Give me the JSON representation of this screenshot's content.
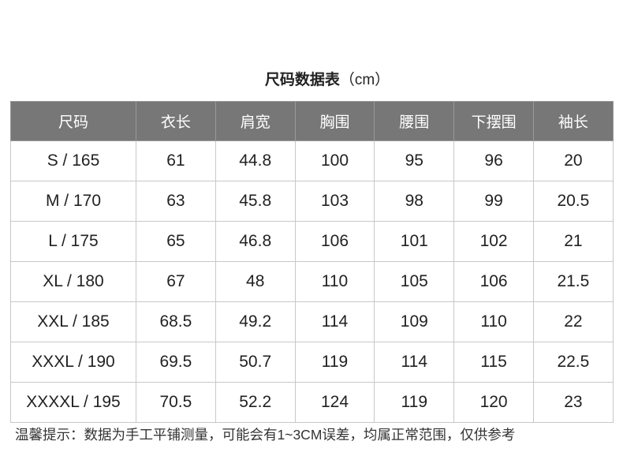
{
  "title": "尺码数据表",
  "unit": "（cm）",
  "headers": [
    "尺码",
    "衣长",
    "肩宽",
    "胸围",
    "腰围",
    "下摆围",
    "袖长"
  ],
  "rows": [
    [
      "S / 165",
      "61",
      "44.8",
      "100",
      "95",
      "96",
      "20"
    ],
    [
      "M / 170",
      "63",
      "45.8",
      "103",
      "98",
      "99",
      "20.5"
    ],
    [
      "L / 175",
      "65",
      "46.8",
      "106",
      "101",
      "102",
      "21"
    ],
    [
      "XL / 180",
      "67",
      "48",
      "110",
      "105",
      "106",
      "21.5"
    ],
    [
      "XXL / 185",
      "68.5",
      "49.2",
      "114",
      "109",
      "110",
      "22"
    ],
    [
      "XXXL / 190",
      "69.5",
      "50.7",
      "119",
      "114",
      "115",
      "22.5"
    ],
    [
      "XXXXL / 195",
      "70.5",
      "52.2",
      "124",
      "119",
      "120",
      "23"
    ]
  ],
  "note": "温馨提示：数据为手工平铺测量，可能会有1~3CM误差，均属正常范围，仅供参考",
  "colors": {
    "header_bg": "#777777",
    "border": "#c8c8c8"
  }
}
